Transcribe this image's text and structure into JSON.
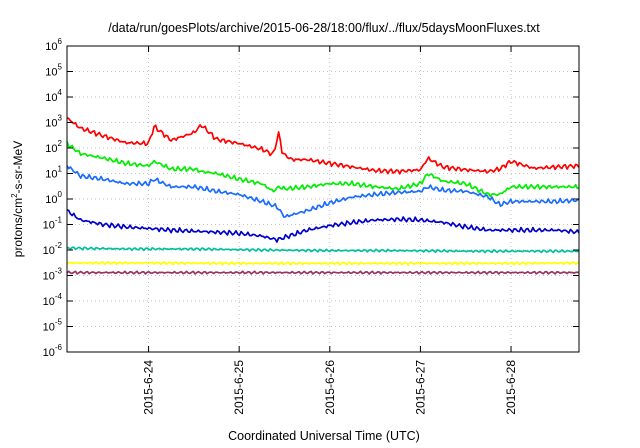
{
  "chart_data": {
    "type": "line",
    "title": "/data/run/goesPlots/archive/2015-06-28/18:00/flux/../flux/5daysMoonFluxes.txt",
    "xlabel": "Coordinated Universal Time (UTC)",
    "ylabel": {
      "prefix": "protons/cm",
      "superscript": "2",
      "suffix": "-s-sr-MeV"
    },
    "yscale": "log",
    "ylim": [
      1e-06,
      1000000.0
    ],
    "yticks": [
      {
        "value": 1e-06,
        "base": "10",
        "exp": "-6"
      },
      {
        "value": 1e-05,
        "base": "10",
        "exp": "-5"
      },
      {
        "value": 0.0001,
        "base": "10",
        "exp": "-4"
      },
      {
        "value": 0.001,
        "base": "10",
        "exp": "-3"
      },
      {
        "value": 0.01,
        "base": "10",
        "exp": "-2"
      },
      {
        "value": 0.1,
        "base": "10",
        "exp": "-1"
      },
      {
        "value": 1,
        "base": "10",
        "exp": "0"
      },
      {
        "value": 10.0,
        "base": "10",
        "exp": "1"
      },
      {
        "value": 100.0,
        "base": "10",
        "exp": "2"
      },
      {
        "value": 1000.0,
        "base": "10",
        "exp": "3"
      },
      {
        "value": 10000.0,
        "base": "10",
        "exp": "4"
      },
      {
        "value": 100000.0,
        "base": "10",
        "exp": "5"
      },
      {
        "value": 1000000.0,
        "base": "10",
        "exp": "6"
      }
    ],
    "xlim": [
      "2015-06-23T02:24",
      "2015-06-28T18:00"
    ],
    "xticks": [
      {
        "value": "2015-06-24T00:00",
        "label": "2015-6-24"
      },
      {
        "value": "2015-06-25T00:00",
        "label": "2015-6-25"
      },
      {
        "value": "2015-06-26T00:00",
        "label": "2015-6-26"
      },
      {
        "value": "2015-06-27T00:00",
        "label": "2015-6-27"
      },
      {
        "value": "2015-06-28T00:00",
        "label": "2015-6-28"
      }
    ],
    "grid": true,
    "series": [
      {
        "color": "#ff0000",
        "x": [
          "2015-06-23T02:24",
          "2015-06-23T06:00",
          "2015-06-23T12:00",
          "2015-06-23T18:00",
          "2015-06-24T00:00",
          "2015-06-24T01:30",
          "2015-06-24T06:00",
          "2015-06-24T12:00",
          "2015-06-24T14:00",
          "2015-06-24T18:00",
          "2015-06-25T00:00",
          "2015-06-25T06:00",
          "2015-06-25T09:00",
          "2015-06-25T10:30",
          "2015-06-25T11:30",
          "2015-06-25T14:00",
          "2015-06-25T18:00",
          "2015-06-26T00:00",
          "2015-06-26T06:00",
          "2015-06-26T12:00",
          "2015-06-26T18:00",
          "2015-06-27T00:00",
          "2015-06-27T02:00",
          "2015-06-27T06:00",
          "2015-06-27T12:00",
          "2015-06-27T18:00",
          "2015-06-27T21:00",
          "2015-06-28T00:00",
          "2015-06-28T06:00",
          "2015-06-28T12:00",
          "2015-06-28T18:00"
        ],
        "y": [
          1500,
          600,
          300,
          160,
          150,
          700,
          200,
          400,
          800,
          220,
          150,
          90,
          55,
          400,
          60,
          35,
          35,
          25,
          18,
          13,
          12,
          14,
          40,
          18,
          14,
          12,
          15,
          30,
          16,
          18,
          20
        ]
      },
      {
        "color": "#00ee00",
        "x": [
          "2015-06-23T02:24",
          "2015-06-23T06:00",
          "2015-06-23T12:00",
          "2015-06-23T18:00",
          "2015-06-24T00:00",
          "2015-06-24T01:30",
          "2015-06-24T06:00",
          "2015-06-24T12:00",
          "2015-06-24T14:00",
          "2015-06-24T18:00",
          "2015-06-25T00:00",
          "2015-06-25T06:00",
          "2015-06-25T09:00",
          "2015-06-25T10:30",
          "2015-06-25T12:00",
          "2015-06-25T18:00",
          "2015-06-26T00:00",
          "2015-06-26T06:00",
          "2015-06-26T12:00",
          "2015-06-26T18:00",
          "2015-06-27T00:00",
          "2015-06-27T02:00",
          "2015-06-27T06:00",
          "2015-06-27T12:00",
          "2015-06-27T18:00",
          "2015-06-27T21:00",
          "2015-06-28T00:00",
          "2015-06-28T06:00",
          "2015-06-28T12:00",
          "2015-06-28T18:00"
        ],
        "y": [
          150,
          60,
          40,
          25,
          20,
          30,
          15,
          15,
          12,
          10,
          6,
          4,
          2,
          3,
          2.5,
          3,
          4,
          4,
          3,
          2.5,
          4,
          10,
          5,
          4,
          1.5,
          1.5,
          3,
          3,
          3,
          3
        ]
      },
      {
        "color": "#1a6cff",
        "x": [
          "2015-06-23T02:24",
          "2015-06-23T06:00",
          "2015-06-23T12:00",
          "2015-06-23T18:00",
          "2015-06-24T00:00",
          "2015-06-24T01:30",
          "2015-06-24T06:00",
          "2015-06-24T12:00",
          "2015-06-24T18:00",
          "2015-06-25T00:00",
          "2015-06-25T06:00",
          "2015-06-25T10:00",
          "2015-06-25T12:00",
          "2015-06-25T18:00",
          "2015-06-26T00:00",
          "2015-06-26T06:00",
          "2015-06-26T12:00",
          "2015-06-26T18:00",
          "2015-06-27T00:00",
          "2015-06-27T02:00",
          "2015-06-27T06:00",
          "2015-06-27T12:00",
          "2015-06-27T18:00",
          "2015-06-27T21:00",
          "2015-06-28T00:00",
          "2015-06-28T06:00",
          "2015-06-28T12:00",
          "2015-06-28T18:00"
        ],
        "y": [
          20,
          8,
          6,
          4,
          4,
          6,
          3,
          3,
          2,
          1.5,
          0.8,
          0.5,
          0.2,
          0.35,
          0.7,
          1.2,
          1.5,
          1.8,
          2,
          3,
          2.2,
          2,
          1.2,
          0.6,
          0.8,
          0.8,
          0.8,
          0.9
        ]
      },
      {
        "color": "#0000cc",
        "x": [
          "2015-06-23T02:24",
          "2015-06-23T06:00",
          "2015-06-23T12:00",
          "2015-06-23T18:00",
          "2015-06-24T00:00",
          "2015-06-24T06:00",
          "2015-06-24T12:00",
          "2015-06-24T18:00",
          "2015-06-25T00:00",
          "2015-06-25T06:00",
          "2015-06-25T10:00",
          "2015-06-25T18:00",
          "2015-06-26T00:00",
          "2015-06-26T06:00",
          "2015-06-26T12:00",
          "2015-06-26T18:00",
          "2015-06-27T00:00",
          "2015-06-27T06:00",
          "2015-06-27T12:00",
          "2015-06-27T18:00",
          "2015-06-28T00:00",
          "2015-06-28T06:00",
          "2015-06-28T12:00",
          "2015-06-28T18:00"
        ],
        "y": [
          0.35,
          0.15,
          0.1,
          0.08,
          0.07,
          0.06,
          0.055,
          0.05,
          0.045,
          0.035,
          0.025,
          0.06,
          0.09,
          0.12,
          0.15,
          0.16,
          0.15,
          0.12,
          0.08,
          0.06,
          0.06,
          0.06,
          0.06,
          0.05
        ]
      },
      {
        "color": "#00c0a0",
        "x": [
          "2015-06-23T02:24",
          "2015-06-23T18:00",
          "2015-06-24T12:00",
          "2015-06-25T06:00",
          "2015-06-26T00:00",
          "2015-06-26T18:00",
          "2015-06-27T12:00",
          "2015-06-28T06:00",
          "2015-06-28T18:00"
        ],
        "y": [
          0.012,
          0.011,
          0.011,
          0.01,
          0.0095,
          0.0095,
          0.009,
          0.009,
          0.009
        ]
      },
      {
        "color": "#ffff00",
        "x": [
          "2015-06-23T02:24",
          "2015-06-24T00:00",
          "2015-06-25T00:00",
          "2015-06-26T00:00",
          "2015-06-27T00:00",
          "2015-06-28T00:00",
          "2015-06-28T18:00"
        ],
        "y": [
          0.0031,
          0.0031,
          0.003,
          0.003,
          0.003,
          0.003,
          0.0031
        ]
      },
      {
        "color": "#993366",
        "x": [
          "2015-06-23T02:24",
          "2015-06-24T00:00",
          "2015-06-25T00:00",
          "2015-06-26T00:00",
          "2015-06-27T00:00",
          "2015-06-28T00:00",
          "2015-06-28T18:00"
        ],
        "y": [
          0.0013,
          0.0013,
          0.0013,
          0.0013,
          0.0013,
          0.0013,
          0.0013
        ]
      }
    ]
  }
}
